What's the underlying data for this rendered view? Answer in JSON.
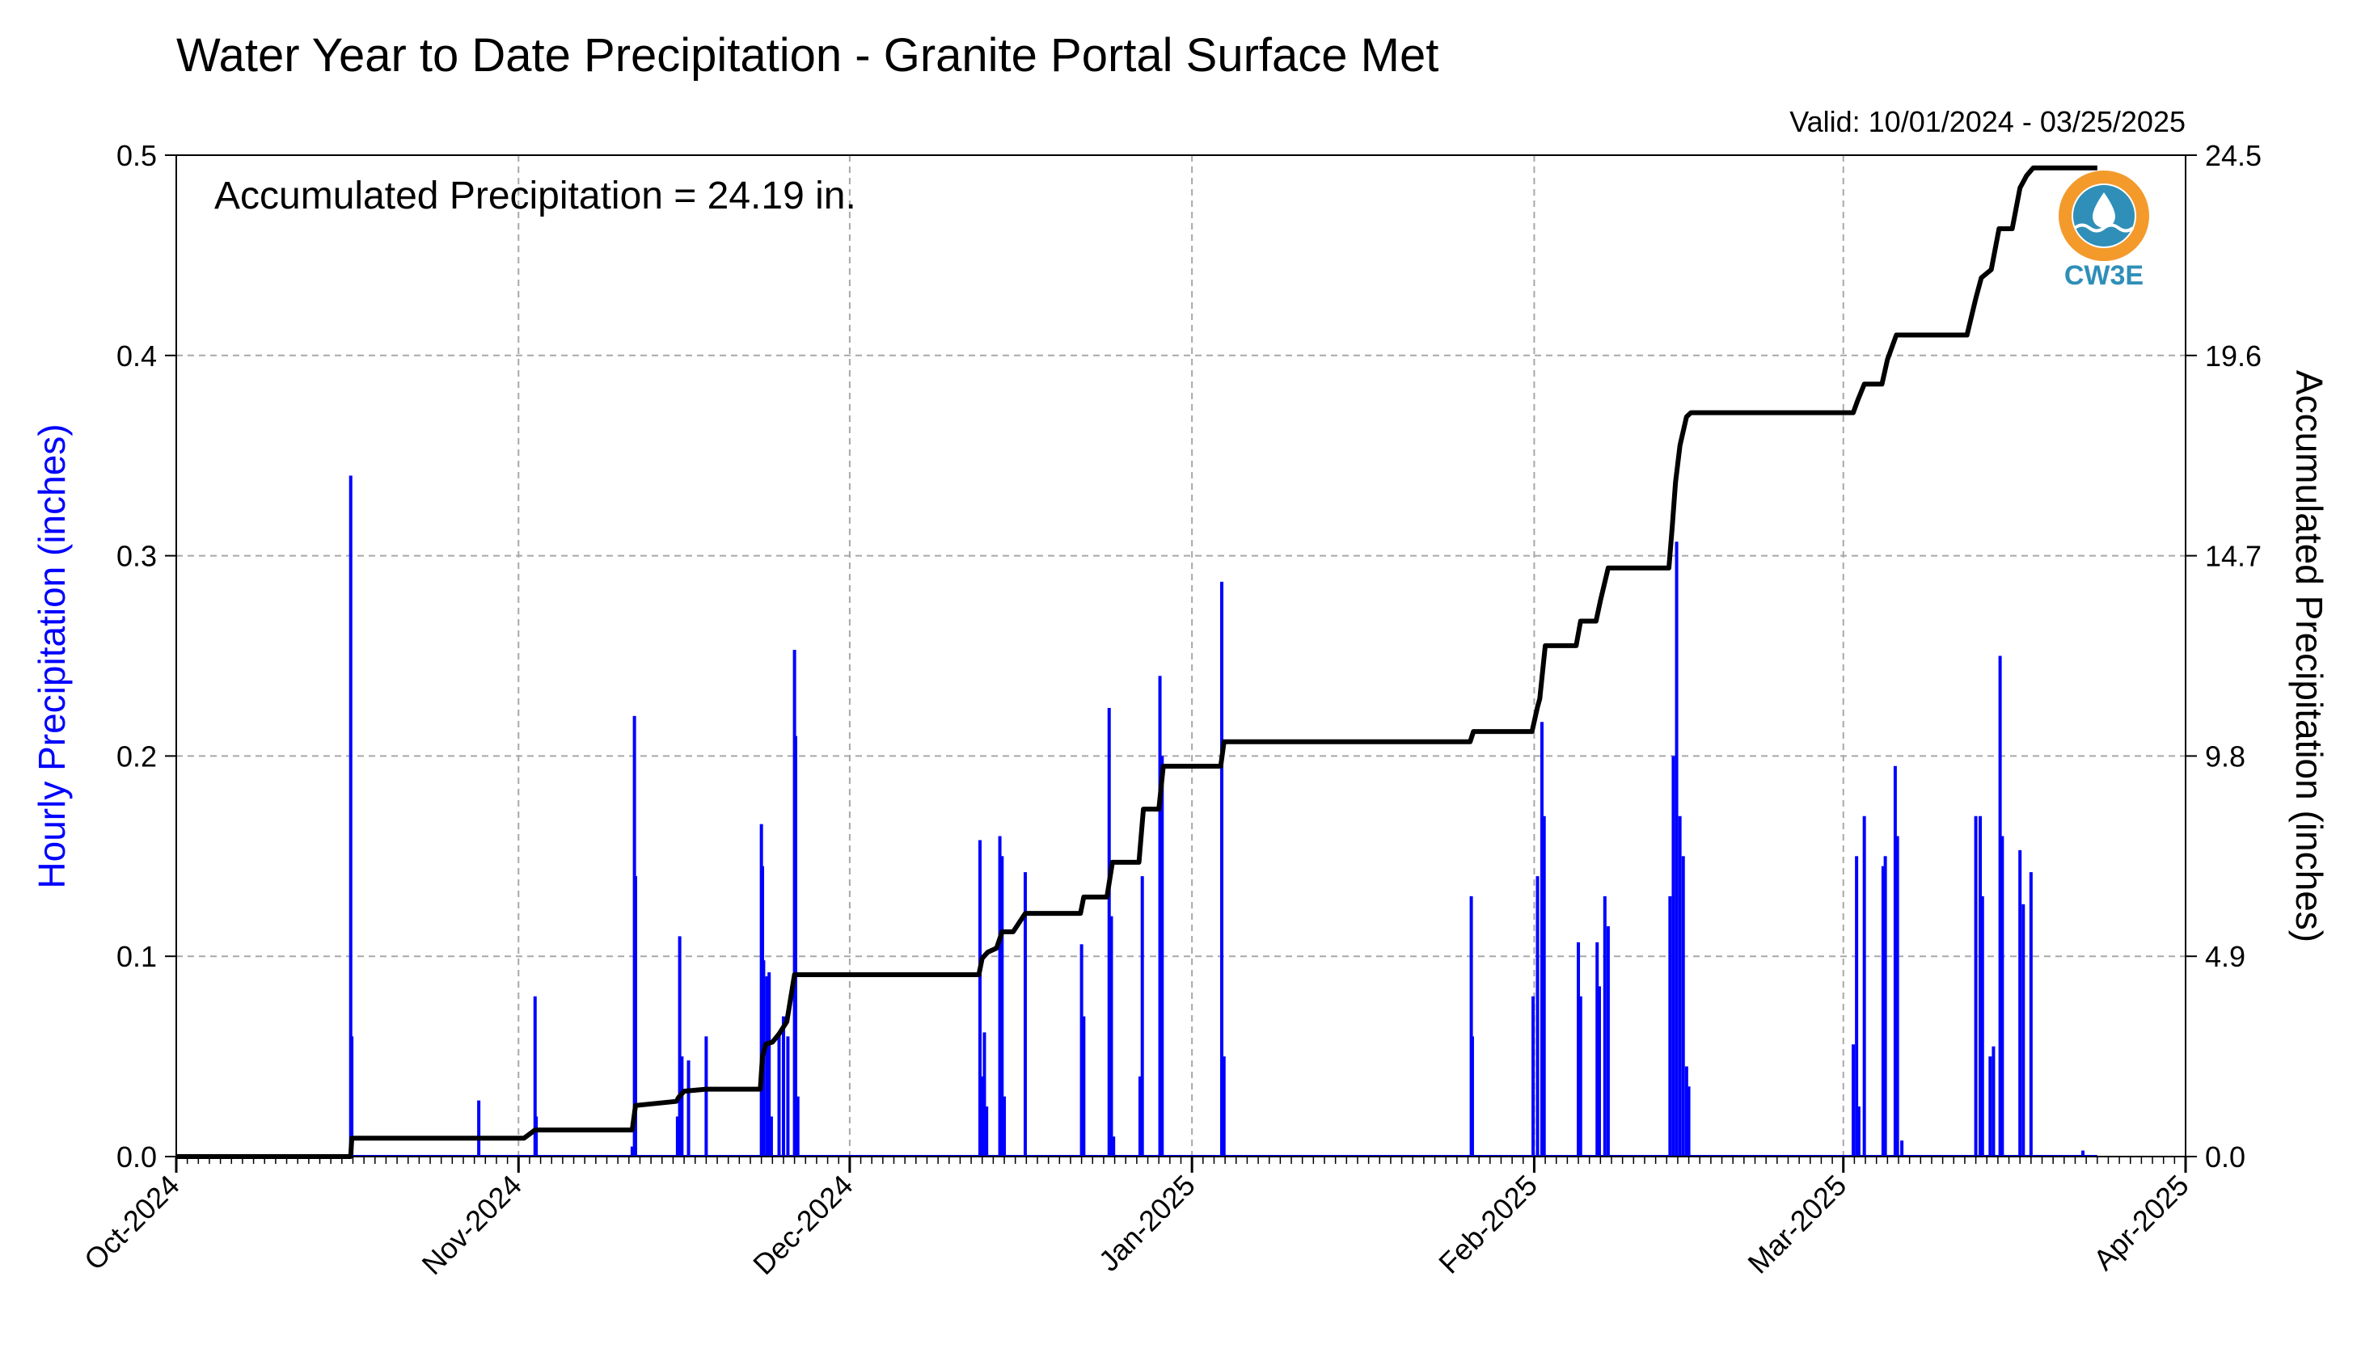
{
  "chart_data": {
    "type": "bar+line",
    "title": "Water Year to Date Precipitation - Granite Portal Surface Met",
    "subtitle": "Valid: 10/01/2024 - 03/25/2025",
    "annotation": "Accumulated Precipitation = 24.19 in.",
    "logo_text": "CW3E",
    "ylabel_left": "Hourly Precipitation (inches)",
    "ylabel_right": "Accumulated Precipitation (inches)",
    "xlabel": "",
    "x_range_days": [
      0,
      182
    ],
    "ylim_left": [
      0,
      0.5
    ],
    "ylim_right": [
      0,
      24.5
    ],
    "left_ticks": [
      "0.0",
      "0.1",
      "0.2",
      "0.3",
      "0.4",
      "0.5"
    ],
    "right_ticks": [
      "0.0",
      "4.9",
      "9.8",
      "14.7",
      "19.6",
      "24.5"
    ],
    "x_tick_labels": [
      {
        "label": "Oct-2024",
        "day": 0
      },
      {
        "label": "Nov-2024",
        "day": 31
      },
      {
        "label": "Dec-2024",
        "day": 61
      },
      {
        "label": "Jan-2025",
        "day": 92
      },
      {
        "label": "Feb-2025",
        "day": 123
      },
      {
        "label": "Mar-2025",
        "day": 151
      },
      {
        "label": "Apr-2025",
        "day": 182
      }
    ],
    "grid": true,
    "colors": {
      "hourly": "#0000ff",
      "accumulated": "#000000",
      "grid": "#a8a8a8",
      "logo_orange": "#f39a2b",
      "logo_blue": "#2f8fb8"
    },
    "series": [
      {
        "name": "Hourly Precipitation",
        "kind": "bar",
        "points": [
          {
            "day": 15.8,
            "value": 0.34
          },
          {
            "day": 15.9,
            "value": 0.06
          },
          {
            "day": 27.4,
            "value": 0.028
          },
          {
            "day": 32.5,
            "value": 0.08
          },
          {
            "day": 32.6,
            "value": 0.02
          },
          {
            "day": 41.3,
            "value": 0.005
          },
          {
            "day": 41.5,
            "value": 0.22
          },
          {
            "day": 41.6,
            "value": 0.14
          },
          {
            "day": 45.4,
            "value": 0.02
          },
          {
            "day": 45.6,
            "value": 0.11
          },
          {
            "day": 45.8,
            "value": 0.05
          },
          {
            "day": 46.4,
            "value": 0.048
          },
          {
            "day": 48.0,
            "value": 0.06
          },
          {
            "day": 53.0,
            "value": 0.166
          },
          {
            "day": 53.1,
            "value": 0.145
          },
          {
            "day": 53.2,
            "value": 0.098
          },
          {
            "day": 53.5,
            "value": 0.09
          },
          {
            "day": 53.7,
            "value": 0.092
          },
          {
            "day": 53.9,
            "value": 0.02
          },
          {
            "day": 54.6,
            "value": 0.062
          },
          {
            "day": 55.0,
            "value": 0.07
          },
          {
            "day": 55.4,
            "value": 0.06
          },
          {
            "day": 56.0,
            "value": 0.253
          },
          {
            "day": 56.1,
            "value": 0.21
          },
          {
            "day": 56.3,
            "value": 0.03
          },
          {
            "day": 72.8,
            "value": 0.158
          },
          {
            "day": 73.0,
            "value": 0.04
          },
          {
            "day": 73.2,
            "value": 0.062
          },
          {
            "day": 73.4,
            "value": 0.025
          },
          {
            "day": 74.6,
            "value": 0.16
          },
          {
            "day": 74.8,
            "value": 0.15
          },
          {
            "day": 75.0,
            "value": 0.03
          },
          {
            "day": 76.9,
            "value": 0.142
          },
          {
            "day": 82.0,
            "value": 0.106
          },
          {
            "day": 82.2,
            "value": 0.07
          },
          {
            "day": 84.5,
            "value": 0.224
          },
          {
            "day": 84.7,
            "value": 0.12
          },
          {
            "day": 84.9,
            "value": 0.01
          },
          {
            "day": 87.3,
            "value": 0.04
          },
          {
            "day": 87.5,
            "value": 0.14
          },
          {
            "day": 89.1,
            "value": 0.24
          },
          {
            "day": 89.3,
            "value": 0.2
          },
          {
            "day": 94.7,
            "value": 0.287
          },
          {
            "day": 94.9,
            "value": 0.05
          },
          {
            "day": 117.3,
            "value": 0.13
          },
          {
            "day": 117.4,
            "value": 0.06
          },
          {
            "day": 122.9,
            "value": 0.08
          },
          {
            "day": 123.3,
            "value": 0.14
          },
          {
            "day": 123.7,
            "value": 0.217
          },
          {
            "day": 123.9,
            "value": 0.17
          },
          {
            "day": 127.0,
            "value": 0.107
          },
          {
            "day": 127.2,
            "value": 0.08
          },
          {
            "day": 128.7,
            "value": 0.107
          },
          {
            "day": 128.9,
            "value": 0.085
          },
          {
            "day": 129.4,
            "value": 0.13
          },
          {
            "day": 129.7,
            "value": 0.115
          },
          {
            "day": 135.3,
            "value": 0.13
          },
          {
            "day": 135.6,
            "value": 0.2
          },
          {
            "day": 135.9,
            "value": 0.307
          },
          {
            "day": 136.2,
            "value": 0.17
          },
          {
            "day": 136.5,
            "value": 0.15
          },
          {
            "day": 136.8,
            "value": 0.045
          },
          {
            "day": 137.0,
            "value": 0.035
          },
          {
            "day": 151.9,
            "value": 0.056
          },
          {
            "day": 152.2,
            "value": 0.15
          },
          {
            "day": 152.4,
            "value": 0.025
          },
          {
            "day": 152.9,
            "value": 0.17
          },
          {
            "day": 154.6,
            "value": 0.145
          },
          {
            "day": 154.8,
            "value": 0.15
          },
          {
            "day": 155.7,
            "value": 0.195
          },
          {
            "day": 155.9,
            "value": 0.16
          },
          {
            "day": 156.3,
            "value": 0.008
          },
          {
            "day": 163.0,
            "value": 0.17
          },
          {
            "day": 163.4,
            "value": 0.17
          },
          {
            "day": 163.6,
            "value": 0.13
          },
          {
            "day": 164.3,
            "value": 0.05
          },
          {
            "day": 164.6,
            "value": 0.055
          },
          {
            "day": 165.2,
            "value": 0.25
          },
          {
            "day": 165.4,
            "value": 0.16
          },
          {
            "day": 167.0,
            "value": 0.153
          },
          {
            "day": 167.3,
            "value": 0.126
          },
          {
            "day": 168.0,
            "value": 0.142
          },
          {
            "day": 172.7,
            "value": 0.003
          }
        ]
      },
      {
        "name": "Accumulated Precipitation",
        "kind": "line",
        "points": [
          {
            "day": 0,
            "value": 0
          },
          {
            "day": 15.8,
            "value": 0
          },
          {
            "day": 15.9,
            "value": 0.45
          },
          {
            "day": 31.5,
            "value": 0.45
          },
          {
            "day": 32.5,
            "value": 0.65
          },
          {
            "day": 41.3,
            "value": 0.65
          },
          {
            "day": 41.6,
            "value": 1.25
          },
          {
            "day": 45.3,
            "value": 1.35
          },
          {
            "day": 45.5,
            "value": 1.45
          },
          {
            "day": 46.0,
            "value": 1.6
          },
          {
            "day": 48.0,
            "value": 1.65
          },
          {
            "day": 52.9,
            "value": 1.65
          },
          {
            "day": 53.1,
            "value": 2.45
          },
          {
            "day": 53.4,
            "value": 2.75
          },
          {
            "day": 54.0,
            "value": 2.8
          },
          {
            "day": 54.6,
            "value": 3.0
          },
          {
            "day": 55.3,
            "value": 3.3
          },
          {
            "day": 56.0,
            "value": 4.45
          },
          {
            "day": 72.7,
            "value": 4.45
          },
          {
            "day": 73.0,
            "value": 4.85
          },
          {
            "day": 73.5,
            "value": 5.0
          },
          {
            "day": 74.3,
            "value": 5.1
          },
          {
            "day": 74.8,
            "value": 5.5
          },
          {
            "day": 75.8,
            "value": 5.5
          },
          {
            "day": 76.9,
            "value": 5.95
          },
          {
            "day": 81.9,
            "value": 5.95
          },
          {
            "day": 82.2,
            "value": 6.35
          },
          {
            "day": 84.3,
            "value": 6.35
          },
          {
            "day": 84.8,
            "value": 7.2
          },
          {
            "day": 87.2,
            "value": 7.2
          },
          {
            "day": 87.6,
            "value": 8.5
          },
          {
            "day": 89.0,
            "value": 8.5
          },
          {
            "day": 89.4,
            "value": 9.55
          },
          {
            "day": 94.6,
            "value": 9.55
          },
          {
            "day": 94.9,
            "value": 10.15
          },
          {
            "day": 117.2,
            "value": 10.15
          },
          {
            "day": 117.5,
            "value": 10.4
          },
          {
            "day": 122.8,
            "value": 10.4
          },
          {
            "day": 123.3,
            "value": 11.0
          },
          {
            "day": 123.5,
            "value": 11.2
          },
          {
            "day": 124.0,
            "value": 12.5
          },
          {
            "day": 126.8,
            "value": 12.5
          },
          {
            "day": 127.2,
            "value": 13.1
          },
          {
            "day": 128.6,
            "value": 13.1
          },
          {
            "day": 129.0,
            "value": 13.6
          },
          {
            "day": 129.7,
            "value": 14.4
          },
          {
            "day": 135.2,
            "value": 14.4
          },
          {
            "day": 135.5,
            "value": 15.4
          },
          {
            "day": 135.8,
            "value": 16.5
          },
          {
            "day": 136.2,
            "value": 17.4
          },
          {
            "day": 136.8,
            "value": 18.1
          },
          {
            "day": 137.2,
            "value": 18.2
          },
          {
            "day": 151.9,
            "value": 18.2
          },
          {
            "day": 152.3,
            "value": 18.5
          },
          {
            "day": 152.9,
            "value": 18.9
          },
          {
            "day": 154.5,
            "value": 18.9
          },
          {
            "day": 155.0,
            "value": 19.5
          },
          {
            "day": 155.8,
            "value": 20.1
          },
          {
            "day": 156.3,
            "value": 20.1
          },
          {
            "day": 162.2,
            "value": 20.1
          },
          {
            "day": 163.0,
            "value": 21.0
          },
          {
            "day": 163.5,
            "value": 21.5
          },
          {
            "day": 164.4,
            "value": 21.7
          },
          {
            "day": 165.1,
            "value": 22.7
          },
          {
            "day": 166.3,
            "value": 22.7
          },
          {
            "day": 167.0,
            "value": 23.7
          },
          {
            "day": 167.6,
            "value": 24.0
          },
          {
            "day": 168.2,
            "value": 24.19
          },
          {
            "day": 174.0,
            "value": 24.19
          }
        ]
      }
    ]
  }
}
